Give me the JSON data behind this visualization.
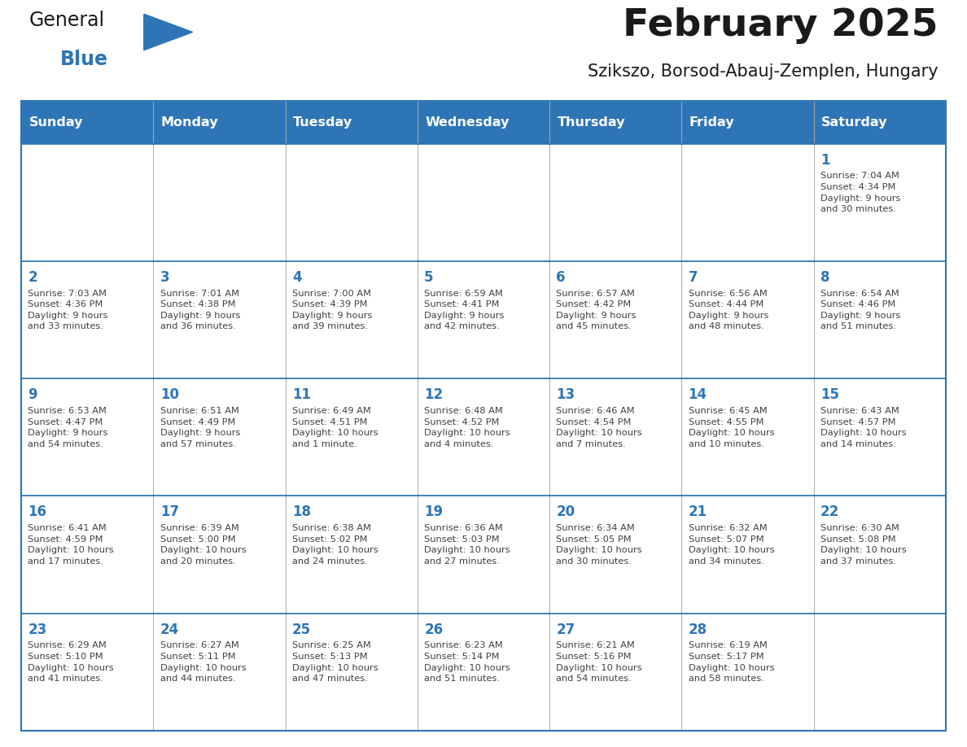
{
  "title": "February 2025",
  "subtitle": "Szikszo, Borsod-Abauj-Zemplen, Hungary",
  "header_color": "#2E75B6",
  "header_text_color": "#FFFFFF",
  "day_text_color": "#2E75B6",
  "info_text_color": "#404040",
  "border_color": "#2E75B6",
  "grid_color": "#AAAAAA",
  "bg_color": "#FFFFFF",
  "days_of_week": [
    "Sunday",
    "Monday",
    "Tuesday",
    "Wednesday",
    "Thursday",
    "Friday",
    "Saturday"
  ],
  "calendar_data": [
    [
      {
        "day": "",
        "info": ""
      },
      {
        "day": "",
        "info": ""
      },
      {
        "day": "",
        "info": ""
      },
      {
        "day": "",
        "info": ""
      },
      {
        "day": "",
        "info": ""
      },
      {
        "day": "",
        "info": ""
      },
      {
        "day": "1",
        "info": "Sunrise: 7:04 AM\nSunset: 4:34 PM\nDaylight: 9 hours\nand 30 minutes."
      }
    ],
    [
      {
        "day": "2",
        "info": "Sunrise: 7:03 AM\nSunset: 4:36 PM\nDaylight: 9 hours\nand 33 minutes."
      },
      {
        "day": "3",
        "info": "Sunrise: 7:01 AM\nSunset: 4:38 PM\nDaylight: 9 hours\nand 36 minutes."
      },
      {
        "day": "4",
        "info": "Sunrise: 7:00 AM\nSunset: 4:39 PM\nDaylight: 9 hours\nand 39 minutes."
      },
      {
        "day": "5",
        "info": "Sunrise: 6:59 AM\nSunset: 4:41 PM\nDaylight: 9 hours\nand 42 minutes."
      },
      {
        "day": "6",
        "info": "Sunrise: 6:57 AM\nSunset: 4:42 PM\nDaylight: 9 hours\nand 45 minutes."
      },
      {
        "day": "7",
        "info": "Sunrise: 6:56 AM\nSunset: 4:44 PM\nDaylight: 9 hours\nand 48 minutes."
      },
      {
        "day": "8",
        "info": "Sunrise: 6:54 AM\nSunset: 4:46 PM\nDaylight: 9 hours\nand 51 minutes."
      }
    ],
    [
      {
        "day": "9",
        "info": "Sunrise: 6:53 AM\nSunset: 4:47 PM\nDaylight: 9 hours\nand 54 minutes."
      },
      {
        "day": "10",
        "info": "Sunrise: 6:51 AM\nSunset: 4:49 PM\nDaylight: 9 hours\nand 57 minutes."
      },
      {
        "day": "11",
        "info": "Sunrise: 6:49 AM\nSunset: 4:51 PM\nDaylight: 10 hours\nand 1 minute."
      },
      {
        "day": "12",
        "info": "Sunrise: 6:48 AM\nSunset: 4:52 PM\nDaylight: 10 hours\nand 4 minutes."
      },
      {
        "day": "13",
        "info": "Sunrise: 6:46 AM\nSunset: 4:54 PM\nDaylight: 10 hours\nand 7 minutes."
      },
      {
        "day": "14",
        "info": "Sunrise: 6:45 AM\nSunset: 4:55 PM\nDaylight: 10 hours\nand 10 minutes."
      },
      {
        "day": "15",
        "info": "Sunrise: 6:43 AM\nSunset: 4:57 PM\nDaylight: 10 hours\nand 14 minutes."
      }
    ],
    [
      {
        "day": "16",
        "info": "Sunrise: 6:41 AM\nSunset: 4:59 PM\nDaylight: 10 hours\nand 17 minutes."
      },
      {
        "day": "17",
        "info": "Sunrise: 6:39 AM\nSunset: 5:00 PM\nDaylight: 10 hours\nand 20 minutes."
      },
      {
        "day": "18",
        "info": "Sunrise: 6:38 AM\nSunset: 5:02 PM\nDaylight: 10 hours\nand 24 minutes."
      },
      {
        "day": "19",
        "info": "Sunrise: 6:36 AM\nSunset: 5:03 PM\nDaylight: 10 hours\nand 27 minutes."
      },
      {
        "day": "20",
        "info": "Sunrise: 6:34 AM\nSunset: 5:05 PM\nDaylight: 10 hours\nand 30 minutes."
      },
      {
        "day": "21",
        "info": "Sunrise: 6:32 AM\nSunset: 5:07 PM\nDaylight: 10 hours\nand 34 minutes."
      },
      {
        "day": "22",
        "info": "Sunrise: 6:30 AM\nSunset: 5:08 PM\nDaylight: 10 hours\nand 37 minutes."
      }
    ],
    [
      {
        "day": "23",
        "info": "Sunrise: 6:29 AM\nSunset: 5:10 PM\nDaylight: 10 hours\nand 41 minutes."
      },
      {
        "day": "24",
        "info": "Sunrise: 6:27 AM\nSunset: 5:11 PM\nDaylight: 10 hours\nand 44 minutes."
      },
      {
        "day": "25",
        "info": "Sunrise: 6:25 AM\nSunset: 5:13 PM\nDaylight: 10 hours\nand 47 minutes."
      },
      {
        "day": "26",
        "info": "Sunrise: 6:23 AM\nSunset: 5:14 PM\nDaylight: 10 hours\nand 51 minutes."
      },
      {
        "day": "27",
        "info": "Sunrise: 6:21 AM\nSunset: 5:16 PM\nDaylight: 10 hours\nand 54 minutes."
      },
      {
        "day": "28",
        "info": "Sunrise: 6:19 AM\nSunset: 5:17 PM\nDaylight: 10 hours\nand 58 minutes."
      },
      {
        "day": "",
        "info": ""
      }
    ]
  ]
}
